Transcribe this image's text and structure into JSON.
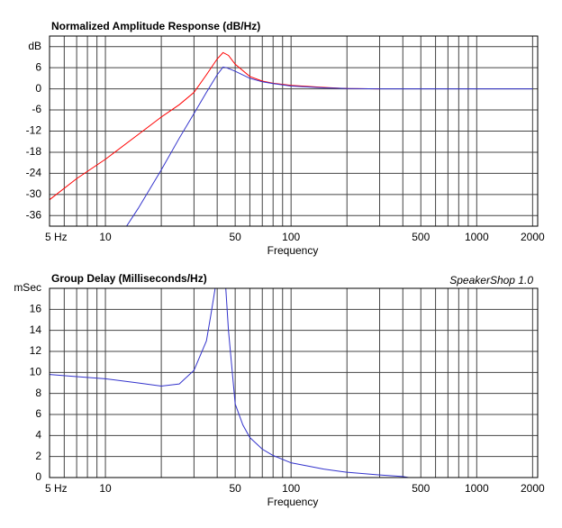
{
  "chart_data": [
    {
      "type": "line",
      "title": "Normalized Amplitude Response (dB/Hz)",
      "x_label": "Frequency",
      "xscale": "log",
      "xlim": [
        5,
        2130
      ],
      "xticks": [
        {
          "value": 5,
          "label": "5  Hz"
        },
        10,
        50,
        100,
        500,
        1000,
        2000
      ],
      "xgrid": [
        6,
        7,
        8,
        9,
        20,
        30,
        40,
        60,
        70,
        80,
        90,
        200,
        300,
        400,
        600,
        700,
        800,
        900
      ],
      "ylim": [
        -39,
        15
      ],
      "yticks": [
        -36,
        -30,
        -24,
        -18,
        -12,
        -6,
        0,
        6,
        {
          "value": 12,
          "label": "dB"
        }
      ],
      "grid": true,
      "series": [
        {
          "color": "#ff0000",
          "x": [
            5,
            7,
            10,
            15,
            20,
            25,
            30,
            35,
            40,
            43,
            46,
            50,
            60,
            70,
            80,
            100,
            150,
            200,
            300
          ],
          "values": [
            -31.5,
            -25.5,
            -20,
            -13,
            -8,
            -4.5,
            -1,
            4,
            8.5,
            10.3,
            9.5,
            7,
            3.5,
            2.2,
            1.6,
            1,
            0.4,
            0.1,
            0
          ]
        },
        {
          "color": "#3333cc",
          "x": [
            13,
            15,
            20,
            25,
            30,
            35,
            40,
            43,
            45,
            50,
            60,
            70,
            80,
            100,
            150,
            200,
            300,
            500,
            1000,
            2000
          ],
          "values": [
            -39,
            -34,
            -23,
            -14,
            -7,
            -1,
            4,
            6.2,
            6,
            5,
            3,
            2,
            1.5,
            0.8,
            0.3,
            0.1,
            0,
            0,
            0,
            0
          ]
        }
      ]
    },
    {
      "type": "line",
      "title": "Group Delay (Milliseconds/Hz)",
      "annotation": "SpeakerShop 1.0",
      "x_label": "Frequency",
      "xscale": "log",
      "xlim": [
        5,
        2130
      ],
      "xticks": [
        {
          "value": 5,
          "label": "5  Hz"
        },
        10,
        50,
        100,
        500,
        1000,
        2000
      ],
      "xgrid": [
        6,
        7,
        8,
        9,
        20,
        30,
        40,
        60,
        70,
        80,
        90,
        200,
        300,
        400,
        600,
        700,
        800,
        900
      ],
      "ylim": [
        0,
        18
      ],
      "yticks": [
        0,
        2,
        4,
        6,
        8,
        10,
        12,
        14,
        16,
        {
          "value": 18,
          "label": "mSec"
        }
      ],
      "grid": true,
      "series": [
        {
          "color": "#3333cc",
          "x": [
            5,
            7,
            10,
            15,
            20,
            25,
            30,
            35,
            37,
            39,
            42,
            44.5,
            46,
            50,
            55,
            60,
            70,
            80,
            100,
            150,
            200,
            300,
            400,
            430
          ],
          "values": [
            9.8,
            9.6,
            9.4,
            9.0,
            8.7,
            8.9,
            10.2,
            13,
            15.5,
            18,
            null,
            18,
            14,
            7,
            5,
            3.8,
            2.7,
            2.1,
            1.4,
            0.8,
            0.5,
            0.25,
            0.1,
            0
          ]
        }
      ]
    }
  ]
}
